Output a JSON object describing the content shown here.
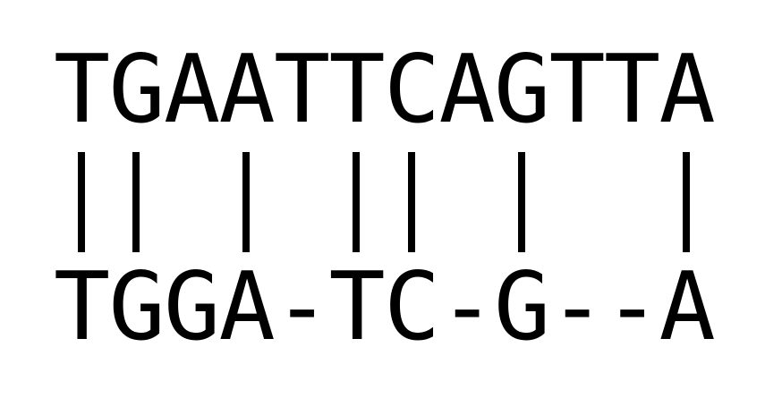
{
  "alignment": {
    "top_sequence": [
      "T",
      "G",
      "A",
      "A",
      "T",
      "T",
      "C",
      "A",
      "G",
      "T",
      "T",
      "A"
    ],
    "bottom_sequence": [
      "T",
      "G",
      "G",
      "A",
      "-",
      "T",
      "C",
      "-",
      "G",
      "-",
      "-",
      "A"
    ],
    "matches": [
      true,
      true,
      false,
      true,
      false,
      true,
      true,
      false,
      true,
      false,
      false,
      true
    ]
  },
  "colors": {
    "text": "#000000",
    "background": "#ffffff"
  }
}
